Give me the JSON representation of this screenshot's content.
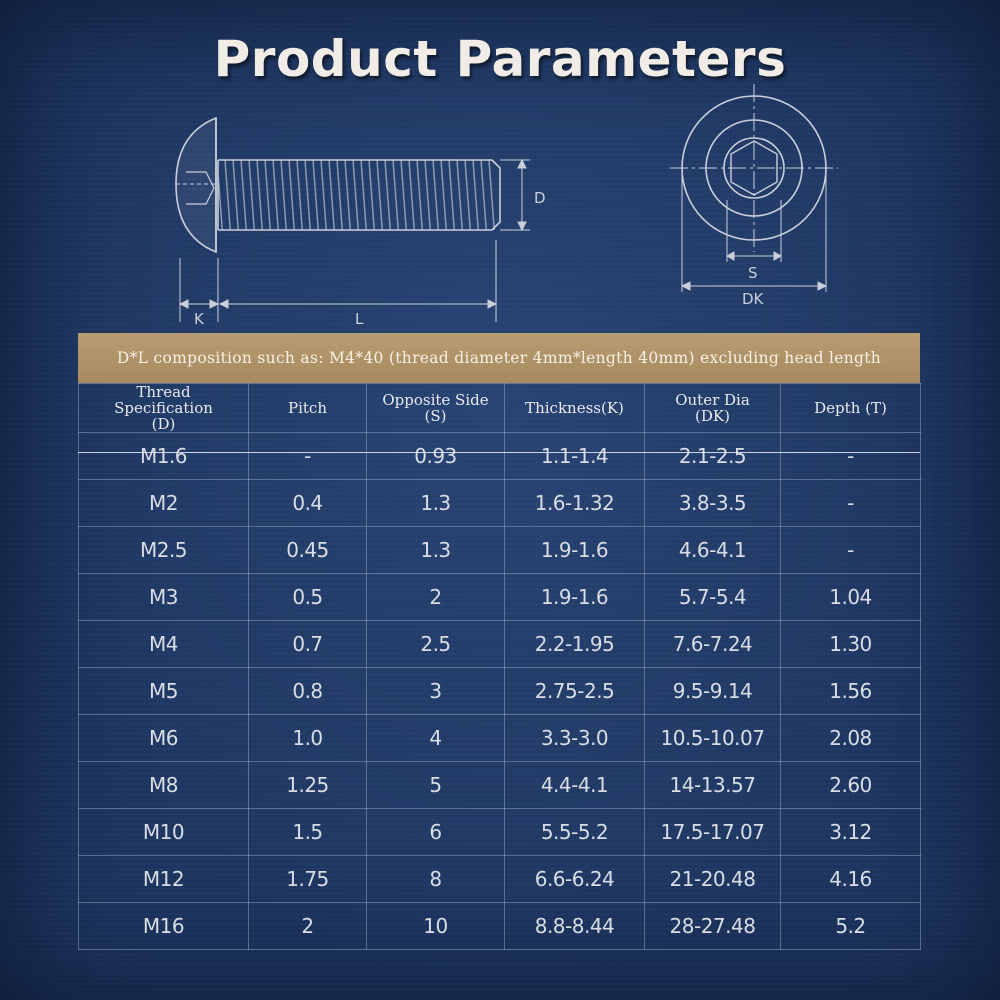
{
  "title": "Product Parameters",
  "drawing": {
    "labels": {
      "d": "D",
      "k": "K",
      "l": "L",
      "s": "S",
      "dk": "DK"
    }
  },
  "note": "D*L composition such as: M4*40 (thread diameter 4mm*length 40mm) excluding head length",
  "table": {
    "headers": [
      [
        "Thread",
        "Specification",
        "(D)"
      ],
      [
        "Pitch"
      ],
      [
        "Opposite Side",
        "(S)"
      ],
      [
        "Thickness(K)"
      ],
      [
        "Outer Dia",
        "(DK)"
      ],
      [
        "Depth (T)"
      ]
    ],
    "rows": [
      [
        "M1.6",
        "-",
        "0.93",
        "1.1-1.4",
        "2.1-2.5",
        "-"
      ],
      [
        "M2",
        "0.4",
        "1.3",
        "1.6-1.32",
        "3.8-3.5",
        "-"
      ],
      [
        "M2.5",
        "0.45",
        "1.3",
        "1.9-1.6",
        "4.6-4.1",
        "-"
      ],
      [
        "M3",
        "0.5",
        "2",
        "1.9-1.6",
        "5.7-5.4",
        "1.04"
      ],
      [
        "M4",
        "0.7",
        "2.5",
        "2.2-1.95",
        "7.6-7.24",
        "1.30"
      ],
      [
        "M5",
        "0.8",
        "3",
        "2.75-2.5",
        "9.5-9.14",
        "1.56"
      ],
      [
        "M6",
        "1.0",
        "4",
        "3.3-3.0",
        "10.5-10.07",
        "2.08"
      ],
      [
        "M8",
        "1.25",
        "5",
        "4.4-4.1",
        "14-13.57",
        "2.60"
      ],
      [
        "M10",
        "1.5",
        "6",
        "5.5-5.2",
        "17.5-17.07",
        "3.12"
      ],
      [
        "M12",
        "1.75",
        "8",
        "6.6-6.24",
        "21-20.48",
        "4.16"
      ],
      [
        "M16",
        "2",
        "10",
        "8.8-8.44",
        "28-27.48",
        "5.2"
      ]
    ]
  },
  "colors": {
    "background": "#1d3560",
    "note_band": "#b89c72",
    "line": "#c9d0dc"
  }
}
